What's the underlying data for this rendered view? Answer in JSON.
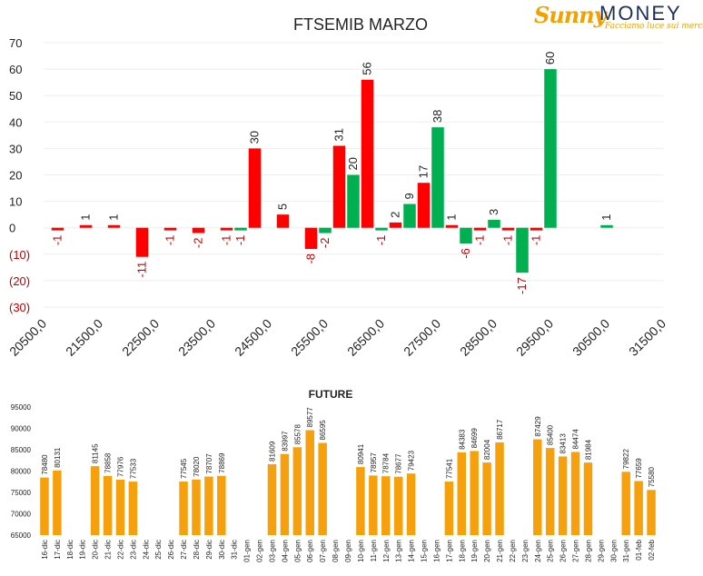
{
  "logo": {
    "brand_left": "Sunny",
    "brand_right": "MONEY",
    "tagline": "Facciamo luce sui mercati"
  },
  "colors": {
    "positive": "#00b050",
    "negative": "#ff0000",
    "future": "#f5a00c",
    "neg_tick": "#c00000"
  },
  "chart_data": [
    {
      "type": "bar",
      "title": "FTSEMIB MARZO",
      "ylim": [
        -30,
        70
      ],
      "yticks": [
        {
          "v": 70,
          "label": "70"
        },
        {
          "v": 60,
          "label": "60"
        },
        {
          "v": 50,
          "label": "50"
        },
        {
          "v": 40,
          "label": "40"
        },
        {
          "v": 30,
          "label": "30"
        },
        {
          "v": 20,
          "label": "20"
        },
        {
          "v": 10,
          "label": "10"
        },
        {
          "v": 0,
          "label": "0"
        },
        {
          "v": -10,
          "label": "(10)"
        },
        {
          "v": -20,
          "label": "(20)"
        },
        {
          "v": -30,
          "label": "(30)"
        }
      ],
      "xlim": [
        20500,
        31500
      ],
      "xticks": [
        "20500,0",
        "21500,0",
        "22500,0",
        "23500,0",
        "24500,0",
        "25500,0",
        "26500,0",
        "27500,0",
        "28500,0",
        "29500,0",
        "30500,0",
        "31500,0"
      ],
      "bar_width": 250,
      "bars": [
        {
          "x": 20750,
          "value": -1,
          "label": "-1",
          "color": "#ff0000"
        },
        {
          "x": 21250,
          "value": 1,
          "label": "1",
          "color": "#ff0000"
        },
        {
          "x": 21750,
          "value": 1,
          "label": "1",
          "color": "#ff0000"
        },
        {
          "x": 22250,
          "value": -11,
          "label": "-11",
          "color": "#ff0000"
        },
        {
          "x": 22750,
          "value": -1,
          "label": "-1",
          "color": "#ff0000"
        },
        {
          "x": 23250,
          "value": -2,
          "label": "-2",
          "color": "#ff0000"
        },
        {
          "x": 23750,
          "value": -1,
          "label": "-1",
          "color": "#ff0000"
        },
        {
          "x": 24000,
          "value": -1,
          "label": "-1",
          "color": "#00b050"
        },
        {
          "x": 24250,
          "value": 30,
          "label": "30",
          "color": "#ff0000"
        },
        {
          "x": 24750,
          "value": 5,
          "label": "5",
          "color": "#ff0000"
        },
        {
          "x": 25250,
          "value": -8,
          "label": "-8",
          "color": "#ff0000"
        },
        {
          "x": 25500,
          "value": -2,
          "label": "-2",
          "color": "#00b050"
        },
        {
          "x": 25750,
          "value": 31,
          "label": "31",
          "color": "#ff0000"
        },
        {
          "x": 26000,
          "value": 20,
          "label": "20",
          "color": "#00b050"
        },
        {
          "x": 26250,
          "value": 56,
          "label": "56",
          "color": "#ff0000"
        },
        {
          "x": 26500,
          "value": -1,
          "label": "-1",
          "color": "#00b050"
        },
        {
          "x": 26750,
          "value": 2,
          "label": "2",
          "color": "#ff0000"
        },
        {
          "x": 27000,
          "value": 9,
          "label": "9",
          "color": "#00b050"
        },
        {
          "x": 27250,
          "value": 17,
          "label": "17",
          "color": "#ff0000"
        },
        {
          "x": 27500,
          "value": 38,
          "label": "38",
          "color": "#00b050"
        },
        {
          "x": 27750,
          "value": 1,
          "label": "1",
          "color": "#ff0000"
        },
        {
          "x": 28000,
          "value": -6,
          "label": "-6",
          "color": "#00b050"
        },
        {
          "x": 28250,
          "value": -1,
          "label": "-1",
          "color": "#ff0000"
        },
        {
          "x": 28500,
          "value": 3,
          "label": "3",
          "color": "#00b050"
        },
        {
          "x": 28750,
          "value": -1,
          "label": "-1",
          "color": "#ff0000"
        },
        {
          "x": 29000,
          "value": -17,
          "label": "-17",
          "color": "#00b050"
        },
        {
          "x": 29250,
          "value": -1,
          "label": "-1",
          "color": "#ff0000"
        },
        {
          "x": 29500,
          "value": 60,
          "label": "60",
          "color": "#00b050"
        },
        {
          "x": 30500,
          "value": 1,
          "label": "1",
          "color": "#00b050"
        }
      ],
      "grid": true
    },
    {
      "type": "bar",
      "title": "FUTURE",
      "ylim": [
        65000,
        95000
      ],
      "yticks": [
        "65000",
        "70000",
        "75000",
        "80000",
        "85000",
        "90000",
        "95000"
      ],
      "categories": [
        "16-dic",
        "17-dic",
        "18-dic",
        "19-dic",
        "20-dic",
        "21-dic",
        "22-dic",
        "23-dic",
        "24-dic",
        "25-dic",
        "26-dic",
        "27-dic",
        "28-dic",
        "29-dic",
        "30-dic",
        "31-dic",
        "01-gen",
        "02-gen",
        "03-gen",
        "04-gen",
        "05-gen",
        "06-gen",
        "07-gen",
        "08-gen",
        "09-gen",
        "10-gen",
        "11-gen",
        "12-gen",
        "13-gen",
        "14-gen",
        "15-gen",
        "16-gen",
        "17-gen",
        "18-gen",
        "19-gen",
        "20-gen",
        "21-gen",
        "22-gen",
        "23-gen",
        "24-gen",
        "25-gen",
        "26-gen",
        "27-gen",
        "28-gen",
        "29-gen",
        "30-gen",
        "31-gen",
        "01-feb",
        "02-feb"
      ],
      "values": [
        78480,
        80131,
        null,
        null,
        81145,
        78858,
        77976,
        77533,
        null,
        null,
        null,
        77545,
        78020,
        78707,
        78869,
        null,
        null,
        null,
        81609,
        83997,
        85578,
        89577,
        86595,
        null,
        null,
        80941,
        78957,
        78784,
        78677,
        79423,
        null,
        null,
        77541,
        84383,
        84699,
        82004,
        86717,
        null,
        null,
        87429,
        85400,
        83413,
        84474,
        81984,
        null,
        null,
        79822,
        77659,
        75580
      ],
      "grid": false
    }
  ]
}
